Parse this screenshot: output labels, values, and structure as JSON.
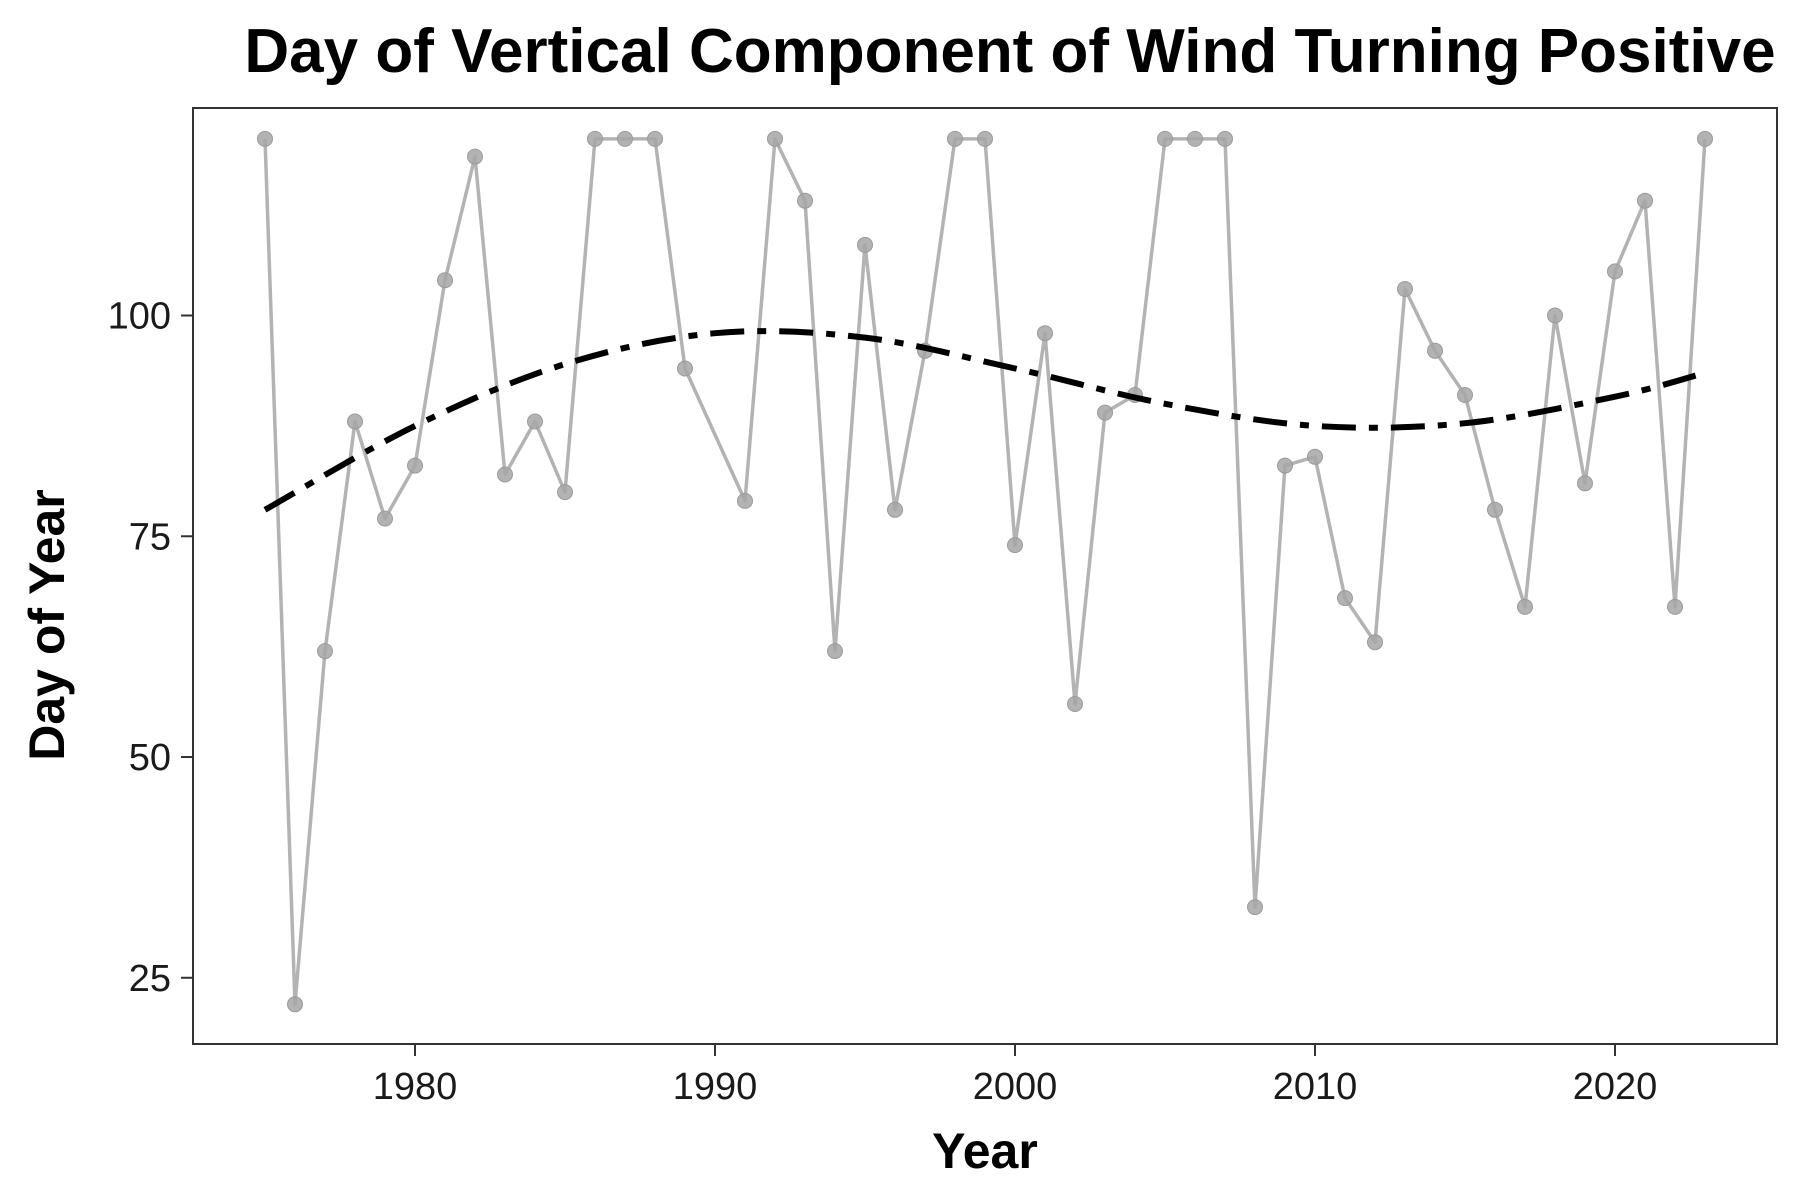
{
  "chart_data": {
    "type": "line",
    "title": "Day of Vertical Component of Wind Turning Positive",
    "xlabel": "Year",
    "ylabel": "Day of Year",
    "xlim": [
      1972.6,
      2025.4
    ],
    "ylim": [
      17.5,
      123.5
    ],
    "x_ticks": [
      1980,
      1990,
      2000,
      2010,
      2020
    ],
    "y_ticks": [
      25,
      50,
      75,
      100
    ],
    "grid": false,
    "legend": "none",
    "colors": {
      "observed": "#b3b3b3",
      "trend": "#000000",
      "axis": "#333333"
    },
    "series": [
      {
        "x": [
          1975,
          1976,
          1977,
          1978,
          1979,
          1980,
          1981,
          1982,
          1983,
          1984,
          1985,
          1986,
          1987,
          1988,
          1989,
          1991,
          1992,
          1993,
          1994,
          1995,
          1996,
          1997,
          1998,
          1999,
          2000,
          2001,
          2002,
          2003,
          2004,
          2005,
          2006,
          2007,
          2008,
          2009,
          2010,
          2011,
          2012,
          2013,
          2014,
          2015,
          2016,
          2017,
          2018,
          2019,
          2020,
          2021,
          2022,
          2023
        ],
        "values": [
          120,
          22,
          62,
          88,
          77,
          83,
          104,
          118,
          82,
          88,
          80,
          120,
          120,
          120,
          94,
          79,
          120,
          113,
          62,
          108,
          78,
          96,
          120,
          120,
          74,
          98,
          56,
          89,
          91,
          120,
          120,
          120,
          33,
          83,
          84,
          68,
          63,
          103,
          96,
          91,
          78,
          67,
          100,
          81,
          105,
          113,
          67,
          120
        ]
      },
      {
        "style": "dashed",
        "x": [
          1975,
          1980,
          1985,
          1990,
          1995,
          2000,
          2005,
          2010,
          2015,
          2020,
          2023
        ],
        "values": [
          78,
          87.5,
          94.5,
          98,
          97.5,
          94,
          90,
          87.5,
          87.8,
          90.8,
          93.5
        ]
      }
    ]
  }
}
